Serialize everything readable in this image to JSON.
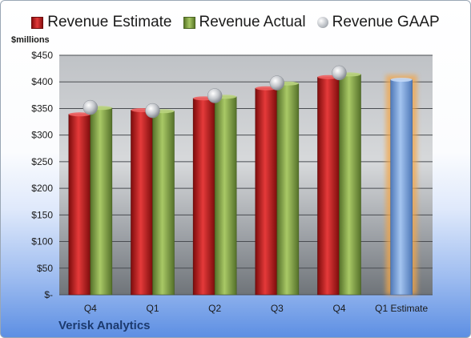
{
  "company": "Verisk Analytics",
  "unit_label": "$millions",
  "legend": [
    {
      "label": "Revenue Estimate",
      "icon": "red-bar-swatch"
    },
    {
      "label": "Revenue Actual",
      "icon": "green-bar-swatch"
    },
    {
      "label": "Revenue GAAP",
      "icon": "gray-sphere-swatch"
    }
  ],
  "colors": {
    "estimate": "#c81e1e",
    "actual": "#8db04a",
    "gaap": "#b9bdc3",
    "projection": "#6f9fdc",
    "projection_glow": "#f2a64a"
  },
  "chart_data": {
    "type": "bar",
    "categories": [
      "Q4",
      "Q1",
      "Q2",
      "Q3",
      "Q4",
      "Q1 Estimate"
    ],
    "series": [
      {
        "name": "Revenue Estimate",
        "values": [
          339,
          347,
          369,
          388,
          409,
          null
        ]
      },
      {
        "name": "Revenue Actual",
        "values": [
          351,
          345,
          372,
          397,
          414,
          null
        ]
      },
      {
        "name": "Revenue GAAP",
        "values": [
          352,
          346,
          374,
          398,
          417,
          null
        ]
      },
      {
        "values": [
          null,
          null,
          null,
          null,
          null,
          404
        ]
      }
    ],
    "ylim": [
      0,
      450
    ],
    "yticks": [
      {
        "value": 0,
        "label": "$-"
      },
      {
        "value": 50,
        "label": "$50"
      },
      {
        "value": 100,
        "label": "$100"
      },
      {
        "value": 150,
        "label": "$150"
      },
      {
        "value": 200,
        "label": "$200"
      },
      {
        "value": 250,
        "label": "$250"
      },
      {
        "value": 300,
        "label": "$300"
      },
      {
        "value": 350,
        "label": "$350"
      },
      {
        "value": 400,
        "label": "$400"
      },
      {
        "value": 450,
        "label": "$450"
      }
    ],
    "grid": true,
    "legend_position": "top"
  }
}
